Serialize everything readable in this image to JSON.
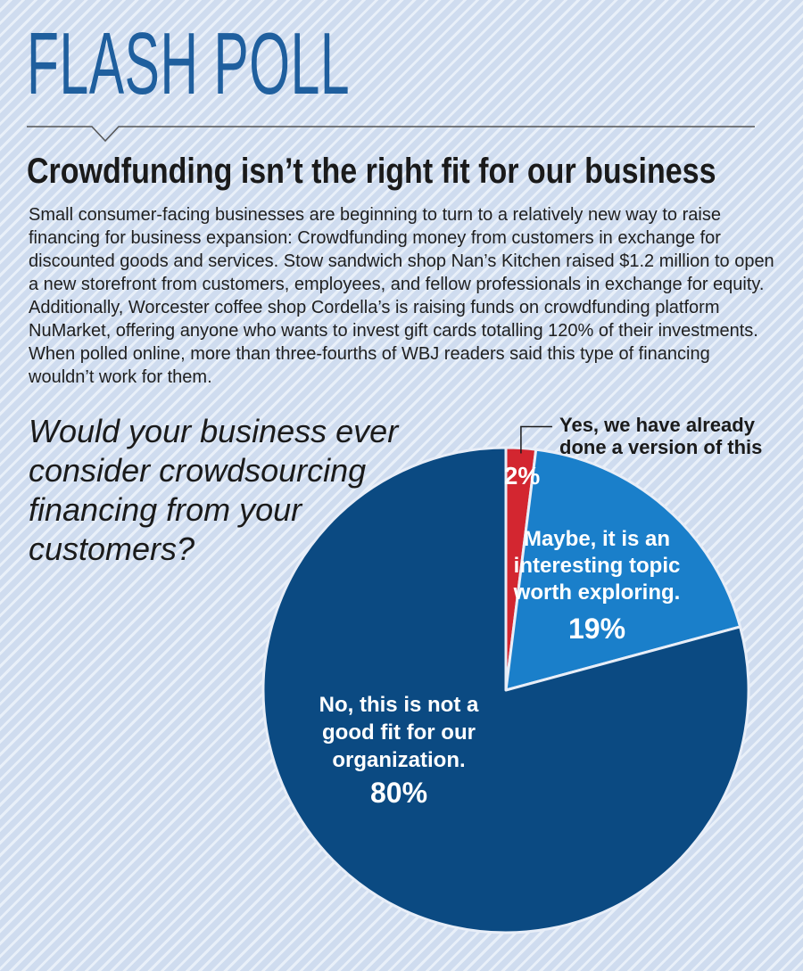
{
  "masthead": "FLASH POLL",
  "headline": "Crowdfunding isn’t the right fit for our business",
  "intro": "Small consumer-facing businesses are beginning to turn to a relatively new way to raise financing for business expansion: Crowdfunding money from customers in exchange for discounted goods and services. Stow sandwich shop Nan’s Kitchen raised $1.2 million to open a new storefront from customers, employees, and fellow professionals in exchange for equity. Additionally, Worcester coffee shop Cordella’s is raising funds on crowdfunding platform NuMarket, offering anyone who wants to invest gift cards totalling 120% of their investments. When polled online, more than three-fourths of WBJ readers said this type of financing wouldn’t work for them.",
  "colors": {
    "masthead": "#1f5f9e",
    "yes": "#d32630",
    "maybe": "#1a7fca",
    "no": "#0b4a82",
    "pie_edge": "#e8eef8"
  },
  "chart_data": {
    "type": "pie",
    "title": "Would your business ever consider crowdsourcing financing from your customers?",
    "slices": [
      {
        "key": "yes",
        "label_lines": [
          "Yes, we have already",
          "done a version of this"
        ],
        "value": 2,
        "percent_label": "2%"
      },
      {
        "key": "maybe",
        "label_lines": [
          "Maybe, it is an",
          "interesting topic",
          "worth exploring."
        ],
        "value": 19,
        "percent_label": "19%"
      },
      {
        "key": "no",
        "label_lines": [
          "No, this is not a",
          "good fit for our",
          "organization."
        ],
        "value": 80,
        "percent_label": "80%"
      }
    ]
  }
}
